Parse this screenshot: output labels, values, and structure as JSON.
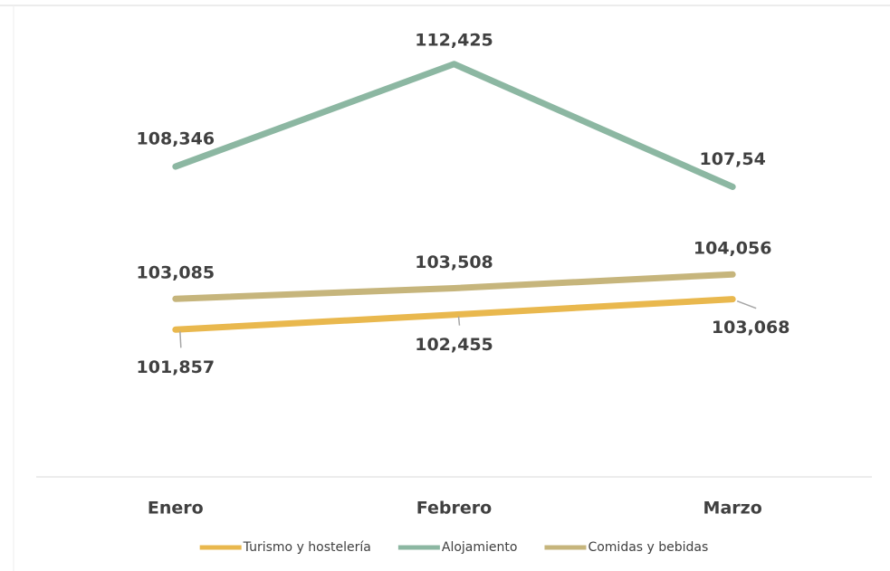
{
  "chart_data": {
    "type": "line",
    "categories": [
      "Enero",
      "Febrero",
      "Marzo"
    ],
    "series": [
      {
        "name": "Turismo y hostelería",
        "color": "#e9b84e",
        "values": [
          101.857,
          102.455,
          103.068
        ],
        "value_labels": [
          "101,857",
          "102,455",
          "103,068"
        ]
      },
      {
        "name": "Alojamiento",
        "color": "#8cb7a2",
        "values": [
          108.346,
          112.425,
          107.54
        ],
        "value_labels": [
          "108,346",
          "112,425",
          "107,54"
        ]
      },
      {
        "name": "Comidas y bebidas",
        "color": "#c6b57c",
        "values": [
          103.085,
          103.508,
          104.056
        ],
        "value_labels": [
          "103,085",
          "103,508",
          "104,056"
        ]
      }
    ],
    "ylim": [
      96,
      114
    ],
    "legend": "bottom"
  }
}
